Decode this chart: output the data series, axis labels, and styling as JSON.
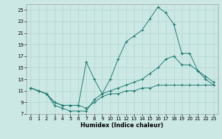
{
  "xlabel": "Humidex (Indice chaleur)",
  "background_color": "#cce8e5",
  "grid_color": "#aed4d0",
  "line_color": "#1a7a6e",
  "xlim": [
    -0.5,
    23.5
  ],
  "ylim": [
    7,
    26
  ],
  "yticks": [
    7,
    9,
    11,
    13,
    15,
    17,
    19,
    21,
    23,
    25
  ],
  "xticks": [
    0,
    1,
    2,
    3,
    4,
    5,
    6,
    7,
    8,
    9,
    10,
    11,
    12,
    13,
    14,
    15,
    16,
    17,
    18,
    19,
    20,
    21,
    22,
    23
  ],
  "series": [
    {
      "x": [
        0,
        1,
        2,
        3,
        4,
        5,
        6,
        7,
        8,
        9,
        10,
        11,
        12,
        13,
        14,
        15,
        16,
        17,
        18,
        19,
        20,
        21,
        22,
        23
      ],
      "y": [
        11.5,
        11.0,
        10.5,
        8.5,
        8.0,
        7.5,
        7.5,
        7.5,
        9.5,
        10.5,
        13.0,
        16.5,
        19.5,
        20.5,
        21.5,
        23.5,
        25.5,
        24.5,
        22.5,
        17.5,
        17.5,
        14.5,
        13.0,
        12.0
      ]
    },
    {
      "x": [
        0,
        1,
        2,
        3,
        4,
        5,
        6,
        7,
        8,
        9,
        10,
        11,
        12,
        13,
        14,
        15,
        16,
        17,
        18,
        19,
        20,
        21,
        22,
        23
      ],
      "y": [
        11.5,
        11.0,
        10.5,
        9.0,
        8.5,
        8.5,
        8.5,
        16.0,
        13.0,
        10.5,
        11.0,
        11.5,
        12.0,
        12.5,
        13.0,
        14.0,
        15.0,
        16.5,
        17.0,
        15.5,
        15.5,
        14.5,
        13.5,
        12.5
      ]
    },
    {
      "x": [
        0,
        1,
        2,
        3,
        4,
        5,
        6,
        7,
        8,
        9,
        10,
        11,
        12,
        13,
        14,
        15,
        16,
        17,
        18,
        19,
        20,
        21,
        22,
        23
      ],
      "y": [
        11.5,
        11.0,
        10.5,
        9.0,
        8.5,
        8.5,
        8.5,
        8.0,
        9.0,
        10.0,
        10.5,
        10.5,
        11.0,
        11.0,
        11.5,
        11.5,
        12.0,
        12.0,
        12.0,
        12.0,
        12.0,
        12.0,
        12.0,
        12.0
      ]
    }
  ]
}
